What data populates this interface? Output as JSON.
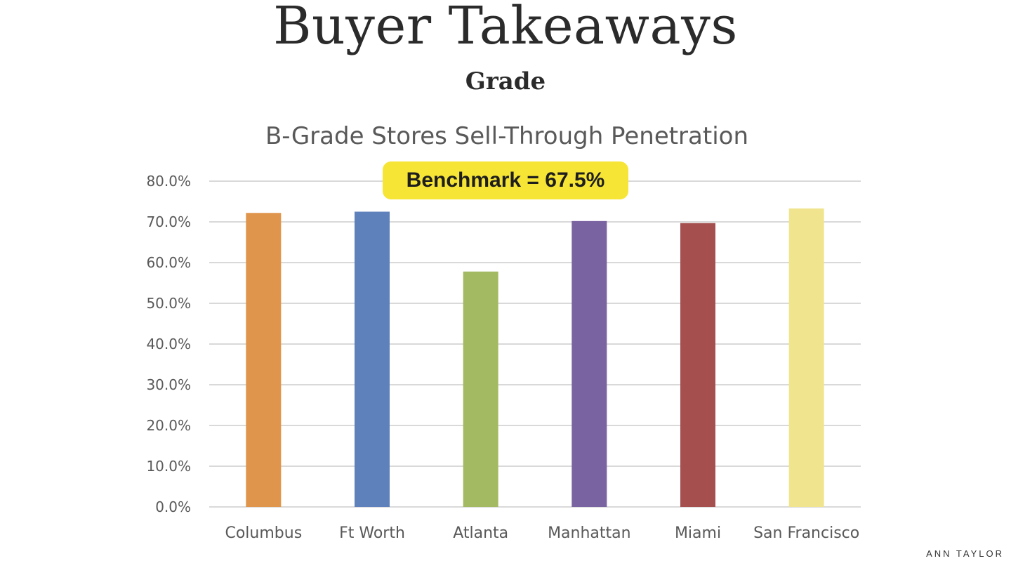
{
  "slide": {
    "title": "Buyer Takeaways",
    "subtitle": "Grade",
    "brand": "ANN TAYLOR"
  },
  "chart_data": {
    "type": "bar",
    "title": "B-Grade Stores Sell-Through Penetration",
    "annotation": "Benchmark = 67.5%",
    "categories": [
      "Columbus",
      "Ft Worth",
      "Atlanta",
      "Manhattan",
      "Miami",
      "San Francisco"
    ],
    "values": [
      72.2,
      72.5,
      57.8,
      70.2,
      69.7,
      73.3
    ],
    "colors": [
      "#df954b",
      "#5e80bb",
      "#a4ba62",
      "#7a63a1",
      "#a5504f",
      "#f0e58e"
    ],
    "ylim": [
      0,
      80
    ],
    "yticks": [
      "0.0%",
      "10.0%",
      "20.0%",
      "30.0%",
      "40.0%",
      "50.0%",
      "60.0%",
      "70.0%",
      "80.0%"
    ],
    "xlabel": "",
    "ylabel": "",
    "grid": true,
    "legend": "none"
  }
}
